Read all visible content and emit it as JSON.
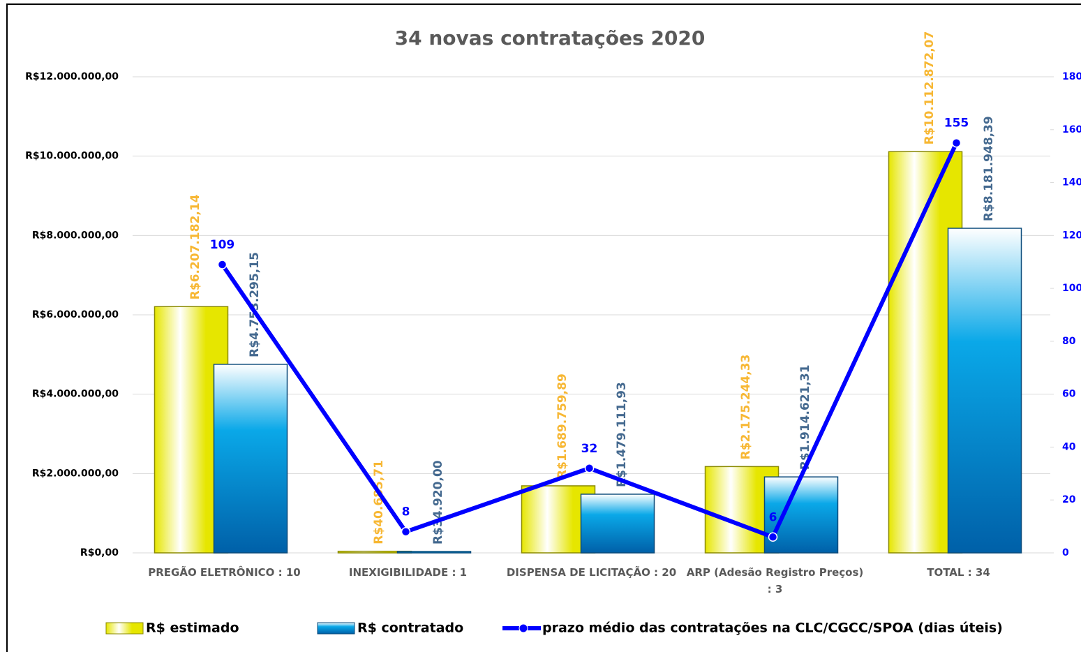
{
  "chart_data": {
    "type": "bar",
    "title": "34 novas contratações 2020",
    "categories": [
      "PREGÃO ELETRÔNICO : 10",
      "INEXIGIBILIDADE : 1",
      "DISPENSA DE LICITAÇÃO : 20",
      "ARP (Adesão Registro Preços) : 3",
      "TOTAL : 34"
    ],
    "series": [
      {
        "name": "R$ estimado",
        "type": "bar",
        "color": "#e6e600",
        "label_color": "#f7b733",
        "values": [
          6207182.14,
          40685.71,
          1689759.89,
          2175244.33,
          10112872.07
        ],
        "value_labels": [
          "R$6.207.182,14",
          "R$40.685,71",
          "R$1.689.759,89",
          "R$2.175.244,33",
          "R$10.112.872,07"
        ]
      },
      {
        "name": "R$ contratado",
        "type": "bar",
        "color": "#0aa8e8",
        "label_color": "#44698f",
        "values": [
          4753295.15,
          34920.0,
          1479111.93,
          1914621.31,
          8181948.39
        ],
        "value_labels": [
          "R$4.753.295,15",
          "R$34.920,00",
          "R$1.479.111,93",
          "R$1.914.621,31",
          "R$8.181.948,39"
        ]
      },
      {
        "name": "prazo médio das contratações na CLC/CGCC/SPOA (dias úteis)",
        "type": "line",
        "axis": "y2",
        "color": "#0000ff",
        "label_color": "#0000ff",
        "values": [
          109,
          8,
          32,
          6,
          155
        ]
      }
    ],
    "ylim": [
      0,
      12000000
    ],
    "yticks": [
      {
        "value": 0,
        "label": "R$0,00"
      },
      {
        "value": 2000000,
        "label": "R$2.000.000,00"
      },
      {
        "value": 4000000,
        "label": "R$4.000.000,00"
      },
      {
        "value": 6000000,
        "label": "R$6.000.000,00"
      },
      {
        "value": 8000000,
        "label": "R$8.000.000,00"
      },
      {
        "value": 10000000,
        "label": "R$10.000.000,00"
      },
      {
        "value": 12000000,
        "label": "R$12.000.000,00"
      }
    ],
    "y2lim": [
      0,
      180
    ],
    "y2ticks": [
      0,
      20,
      40,
      60,
      80,
      100,
      120,
      140,
      160,
      180
    ],
    "grid": true,
    "legend": "bottom"
  }
}
